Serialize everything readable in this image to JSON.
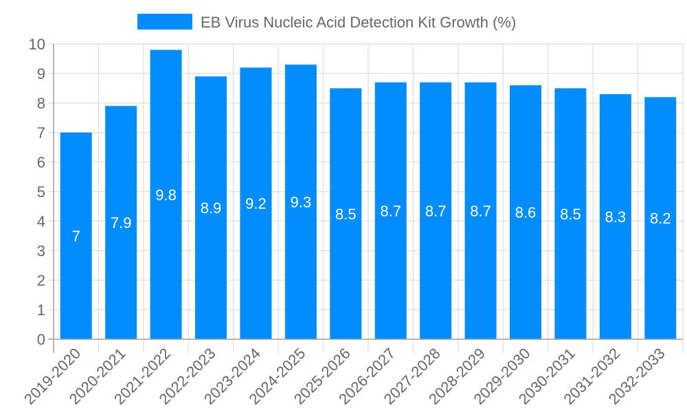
{
  "chart_data": {
    "type": "bar",
    "title": "",
    "legend": {
      "position": "top",
      "entries": [
        {
          "label": "EB Virus Nucleic Acid Detection Kit Growth (%)",
          "color": "#038cfc"
        }
      ]
    },
    "categories": [
      "2019-2020",
      "2020-2021",
      "2021-2022",
      "2022-2023",
      "2023-2024",
      "2024-2025",
      "2025-2026",
      "2026-2027",
      "2027-2028",
      "2028-2029",
      "2029-2030",
      "2030-2031",
      "2031-2032",
      "2032-2033"
    ],
    "series": [
      {
        "name": "EB Virus Nucleic Acid Detection Kit Growth (%)",
        "values": [
          7,
          7.9,
          9.8,
          8.9,
          9.2,
          9.3,
          8.5,
          8.7,
          8.7,
          8.7,
          8.6,
          8.5,
          8.3,
          8.2
        ],
        "color": "#038cfc"
      }
    ],
    "data_labels": [
      "7",
      "7.9",
      "9.8",
      "8.9",
      "9.2",
      "9.3",
      "8.5",
      "8.7",
      "8.7",
      "8.7",
      "8.6",
      "8.5",
      "8.3",
      "8.2"
    ],
    "xlabel": "",
    "ylabel": "",
    "ylim": [
      0,
      10
    ],
    "yticks": [
      "0",
      "1",
      "2",
      "3",
      "4",
      "5",
      "6",
      "7",
      "8",
      "9",
      "10"
    ],
    "grid": true,
    "x_tick_rotation": -45
  }
}
